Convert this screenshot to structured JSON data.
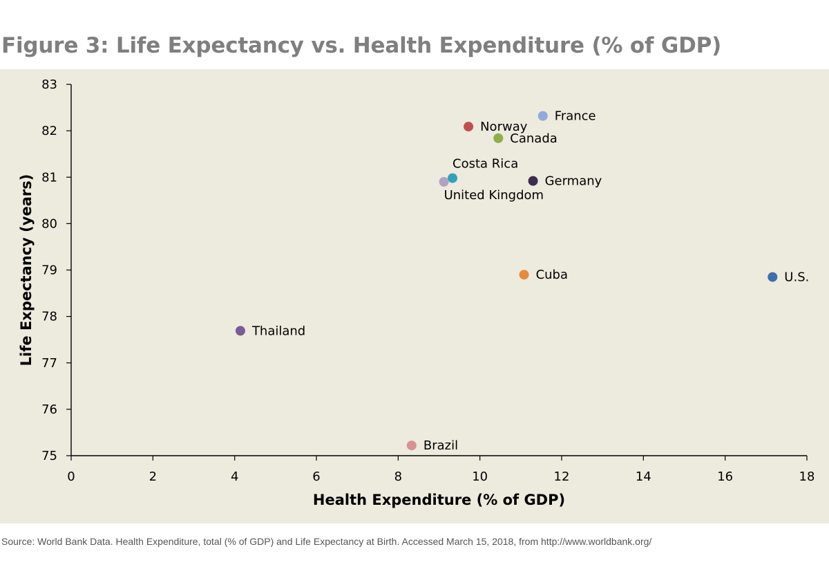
{
  "title": "Figure 3: Life Expectancy vs. Health Expenditure (% of GDP)",
  "source": "Source: World Bank Data. Health Expenditure, total (% of GDP) and Life Expectancy at Birth. Accessed March 15, 2018, from http://www.worldbank.org/",
  "chart_data": {
    "type": "scatter",
    "title": "Figure 3: Life Expectancy vs. Health Expenditure (% of GDP)",
    "xlabel": "Health Expenditure (% of GDP)",
    "ylabel": "Life Expectancy (years)",
    "xlim": [
      0,
      18
    ],
    "ylim": [
      75,
      83
    ],
    "xticks": [
      0,
      2,
      4,
      6,
      8,
      10,
      12,
      14,
      16,
      18
    ],
    "yticks": [
      75,
      76,
      77,
      78,
      79,
      80,
      81,
      82,
      83
    ],
    "grid": false,
    "points": [
      {
        "name": "France",
        "x": 11.54,
        "y": 82.32,
        "color": "#8faadc",
        "label_pos": "right"
      },
      {
        "name": "Norway",
        "x": 9.72,
        "y": 82.09,
        "color": "#c0504d",
        "label_pos": "right"
      },
      {
        "name": "Canada",
        "x": 10.45,
        "y": 81.84,
        "color": "#8db04a",
        "label_pos": "right"
      },
      {
        "name": "Costa Rica",
        "x": 9.33,
        "y": 80.98,
        "color": "#31a2b8",
        "label_pos": "above"
      },
      {
        "name": "United Kingdom",
        "x": 9.12,
        "y": 80.9,
        "color": "#b3a2c7",
        "label_pos": "below"
      },
      {
        "name": "Germany",
        "x": 11.3,
        "y": 80.92,
        "color": "#3d2c4e",
        "label_pos": "right"
      },
      {
        "name": "Cuba",
        "x": 11.08,
        "y": 78.9,
        "color": "#e78a3c",
        "label_pos": "right"
      },
      {
        "name": "U.S.",
        "x": 17.16,
        "y": 78.85,
        "color": "#3d6fae",
        "label_pos": "right"
      },
      {
        "name": "Thailand",
        "x": 4.14,
        "y": 77.69,
        "color": "#7a5b96",
        "label_pos": "right"
      },
      {
        "name": "Brazil",
        "x": 8.33,
        "y": 75.22,
        "color": "#d99194",
        "label_pos": "right"
      }
    ]
  }
}
